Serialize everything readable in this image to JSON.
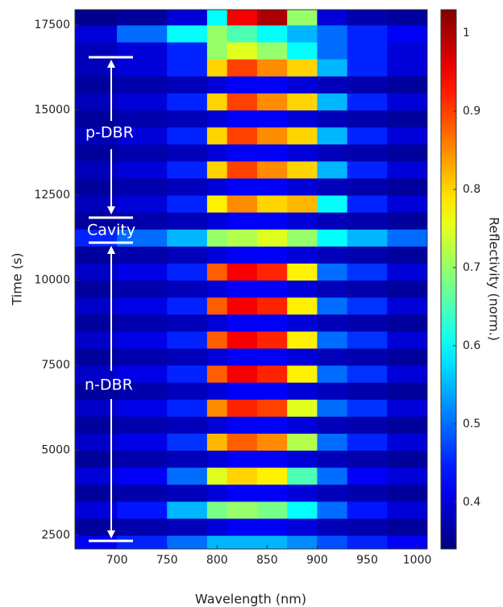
{
  "chart_data": {
    "type": "heatmap",
    "xlabel": "Wavelength (nm)",
    "ylabel": "Time (s)",
    "colorbar_label": "Reflectivity (norm.)",
    "colorscale": "jet",
    "xlim": [
      658,
      1010
    ],
    "ylim": [
      2100,
      17950
    ],
    "clim": [
      0.34,
      1.03
    ],
    "xticks": [
      700,
      750,
      800,
      850,
      900,
      950,
      1000
    ],
    "yticks": [
      2500,
      5000,
      7500,
      10000,
      12500,
      15000,
      17500
    ],
    "cticks": [
      0.4,
      0.5,
      0.6,
      0.7,
      0.8,
      0.9,
      1
    ],
    "annotations": [
      "p-DBR",
      "Cavity",
      "n-DBR"
    ],
    "xbins": [
      658,
      700,
      750,
      790,
      810,
      840,
      870,
      900,
      930,
      970,
      1010
    ],
    "ybins": [
      2100,
      2500,
      3000,
      3500,
      4000,
      4500,
      5000,
      5500,
      6000,
      6500,
      7000,
      7500,
      8000,
      8500,
      9000,
      9500,
      10000,
      10500,
      11000,
      11500,
      12000,
      12500,
      13000,
      13500,
      14000,
      14500,
      15000,
      15500,
      16000,
      16500,
      17000,
      17500,
      17950
    ],
    "z": [
      [
        0.42,
        0.45,
        0.5,
        0.55,
        0.55,
        0.55,
        0.52,
        0.48,
        0.45,
        0.42
      ],
      [
        0.36,
        0.37,
        0.38,
        0.4,
        0.42,
        0.42,
        0.4,
        0.38,
        0.37,
        0.36
      ],
      [
        0.4,
        0.44,
        0.55,
        0.68,
        0.7,
        0.68,
        0.6,
        0.5,
        0.44,
        0.4
      ],
      [
        0.36,
        0.37,
        0.38,
        0.4,
        0.42,
        0.42,
        0.4,
        0.38,
        0.37,
        0.36
      ],
      [
        0.4,
        0.42,
        0.5,
        0.75,
        0.8,
        0.78,
        0.65,
        0.5,
        0.42,
        0.4
      ],
      [
        0.36,
        0.37,
        0.38,
        0.4,
        0.42,
        0.42,
        0.4,
        0.38,
        0.37,
        0.36
      ],
      [
        0.39,
        0.41,
        0.46,
        0.82,
        0.88,
        0.85,
        0.72,
        0.5,
        0.45,
        0.4
      ],
      [
        0.36,
        0.37,
        0.38,
        0.4,
        0.42,
        0.42,
        0.4,
        0.38,
        0.37,
        0.36
      ],
      [
        0.39,
        0.41,
        0.45,
        0.85,
        0.92,
        0.9,
        0.75,
        0.5,
        0.46,
        0.4
      ],
      [
        0.36,
        0.37,
        0.38,
        0.4,
        0.42,
        0.42,
        0.4,
        0.38,
        0.37,
        0.36
      ],
      [
        0.39,
        0.41,
        0.45,
        0.88,
        0.95,
        0.92,
        0.78,
        0.5,
        0.46,
        0.4
      ],
      [
        0.36,
        0.37,
        0.38,
        0.4,
        0.42,
        0.42,
        0.4,
        0.38,
        0.37,
        0.36
      ],
      [
        0.39,
        0.41,
        0.45,
        0.88,
        0.95,
        0.92,
        0.78,
        0.5,
        0.46,
        0.4
      ],
      [
        0.36,
        0.37,
        0.38,
        0.4,
        0.42,
        0.42,
        0.4,
        0.38,
        0.37,
        0.36
      ],
      [
        0.39,
        0.41,
        0.45,
        0.88,
        0.95,
        0.92,
        0.78,
        0.5,
        0.46,
        0.4
      ],
      [
        0.36,
        0.37,
        0.38,
        0.4,
        0.42,
        0.42,
        0.4,
        0.38,
        0.37,
        0.36
      ],
      [
        0.39,
        0.41,
        0.45,
        0.88,
        0.95,
        0.92,
        0.78,
        0.5,
        0.46,
        0.4
      ],
      [
        0.36,
        0.37,
        0.38,
        0.4,
        0.42,
        0.42,
        0.4,
        0.38,
        0.37,
        0.36
      ],
      [
        0.45,
        0.5,
        0.55,
        0.7,
        0.72,
        0.75,
        0.7,
        0.6,
        0.55,
        0.5
      ],
      [
        0.36,
        0.37,
        0.38,
        0.4,
        0.42,
        0.42,
        0.4,
        0.38,
        0.37,
        0.36
      ],
      [
        0.38,
        0.4,
        0.45,
        0.78,
        0.85,
        0.8,
        0.82,
        0.6,
        0.45,
        0.4
      ],
      [
        0.36,
        0.37,
        0.38,
        0.4,
        0.42,
        0.42,
        0.4,
        0.38,
        0.37,
        0.36
      ],
      [
        0.38,
        0.4,
        0.45,
        0.8,
        0.9,
        0.85,
        0.8,
        0.55,
        0.45,
        0.4
      ],
      [
        0.36,
        0.37,
        0.38,
        0.4,
        0.42,
        0.42,
        0.4,
        0.38,
        0.37,
        0.36
      ],
      [
        0.38,
        0.4,
        0.45,
        0.8,
        0.9,
        0.85,
        0.8,
        0.55,
        0.45,
        0.4
      ],
      [
        0.36,
        0.37,
        0.38,
        0.4,
        0.42,
        0.42,
        0.4,
        0.38,
        0.37,
        0.36
      ],
      [
        0.38,
        0.4,
        0.45,
        0.8,
        0.9,
        0.85,
        0.8,
        0.55,
        0.45,
        0.4
      ],
      [
        0.36,
        0.37,
        0.38,
        0.4,
        0.42,
        0.42,
        0.4,
        0.38,
        0.37,
        0.36
      ],
      [
        0.38,
        0.4,
        0.45,
        0.8,
        0.9,
        0.85,
        0.8,
        0.55,
        0.45,
        0.4
      ],
      [
        0.38,
        0.4,
        0.45,
        0.7,
        0.75,
        0.7,
        0.6,
        0.5,
        0.45,
        0.4
      ],
      [
        0.4,
        0.5,
        0.6,
        0.7,
        0.65,
        0.6,
        0.55,
        0.5,
        0.45,
        0.42
      ],
      [
        0.35,
        0.36,
        0.4,
        0.6,
        0.95,
        1.0,
        0.7,
        0.4,
        0.37,
        0.36
      ]
    ]
  }
}
